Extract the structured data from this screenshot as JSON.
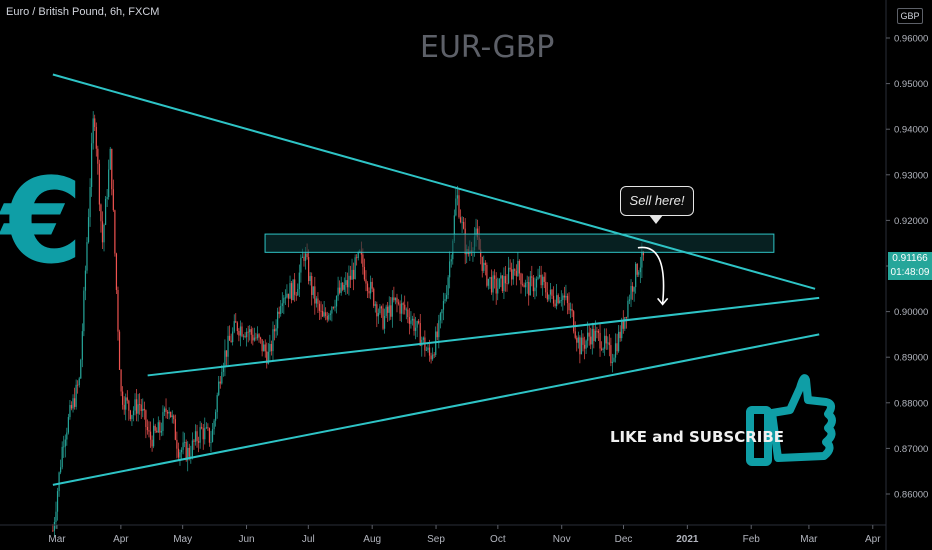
{
  "header": {
    "symbol_title": "Euro / British Pound, 6h, FXCM",
    "watermark": "EUR-GBP",
    "currency_badge": "GBP"
  },
  "price_tag": {
    "price": "0.91166",
    "countdown": "01:48:09"
  },
  "annotations": {
    "callout": "Sell here!",
    "like_text": "LIKE and SUBSCRIBE",
    "euro_symbol": "€",
    "euro_icon": "euro-symbol-icon",
    "thumbs_icon": "thumbs-up-icon"
  },
  "colors": {
    "background": "#000000",
    "trendline": "#2ec4c6",
    "zone_fill": "#0d3a3c",
    "up_candle": "#26a69a",
    "down_candle": "#ef5350",
    "euro_icon": "#0f9ea6",
    "thumb_icon": "#0f9ea6",
    "price_tag": "#26a69a"
  },
  "chart_data": {
    "type": "candlestick",
    "title": "EUR-GBP",
    "xlabel": "",
    "ylabel": "",
    "ylim": [
      0.851,
      0.966
    ],
    "x_ticks": [
      "Mar",
      "Apr",
      "May",
      "Jun",
      "Jul",
      "Aug",
      "Sep",
      "Oct",
      "Nov",
      "Dec",
      "2021",
      "Feb",
      "Mar",
      "Apr"
    ],
    "y_ticks": [
      "0.96000",
      "0.95000",
      "0.94000",
      "0.93000",
      "0.92000",
      "0.91000",
      "0.90000",
      "0.89000",
      "0.88000",
      "0.87000",
      "0.86000"
    ],
    "last_price": 0.91166,
    "price_path": [
      [
        "2020-02-28",
        0.852
      ],
      [
        "2020-03-04",
        0.872
      ],
      [
        "2020-03-12",
        0.885
      ],
      [
        "2020-03-19",
        0.945
      ],
      [
        "2020-03-23",
        0.915
      ],
      [
        "2020-03-27",
        0.935
      ],
      [
        "2020-04-01",
        0.882
      ],
      [
        "2020-04-06",
        0.878
      ],
      [
        "2020-04-10",
        0.88
      ],
      [
        "2020-04-15",
        0.872
      ],
      [
        "2020-04-20",
        0.874
      ],
      [
        "2020-04-24",
        0.88
      ],
      [
        "2020-04-29",
        0.87
      ],
      [
        "2020-05-04",
        0.869
      ],
      [
        "2020-05-10",
        0.874
      ],
      [
        "2020-05-15",
        0.872
      ],
      [
        "2020-05-20",
        0.889
      ],
      [
        "2020-05-27",
        0.897
      ],
      [
        "2020-06-01",
        0.896
      ],
      [
        "2020-06-06",
        0.894
      ],
      [
        "2020-06-12",
        0.89
      ],
      [
        "2020-06-18",
        0.904
      ],
      [
        "2020-06-25",
        0.905
      ],
      [
        "2020-06-29",
        0.913
      ],
      [
        "2020-07-03",
        0.904
      ],
      [
        "2020-07-08",
        0.898
      ],
      [
        "2020-07-14",
        0.903
      ],
      [
        "2020-07-20",
        0.906
      ],
      [
        "2020-07-26",
        0.912
      ],
      [
        "2020-07-31",
        0.905
      ],
      [
        "2020-08-06",
        0.898
      ],
      [
        "2020-08-12",
        0.902
      ],
      [
        "2020-08-18",
        0.9
      ],
      [
        "2020-08-24",
        0.895
      ],
      [
        "2020-08-29",
        0.89
      ],
      [
        "2020-09-02",
        0.895
      ],
      [
        "2020-09-06",
        0.905
      ],
      [
        "2020-09-09",
        0.916
      ],
      [
        "2020-09-11",
        0.926
      ],
      [
        "2020-09-16",
        0.912
      ],
      [
        "2020-09-20",
        0.917
      ],
      [
        "2020-09-25",
        0.908
      ],
      [
        "2020-09-30",
        0.905
      ],
      [
        "2020-10-05",
        0.907
      ],
      [
        "2020-10-10",
        0.91
      ],
      [
        "2020-10-15",
        0.905
      ],
      [
        "2020-10-21",
        0.907
      ],
      [
        "2020-10-27",
        0.903
      ],
      [
        "2020-11-01",
        0.904
      ],
      [
        "2020-11-06",
        0.899
      ],
      [
        "2020-11-10",
        0.892
      ],
      [
        "2020-11-15",
        0.895
      ],
      [
        "2020-11-20",
        0.894
      ],
      [
        "2020-11-25",
        0.89
      ],
      [
        "2020-11-30",
        0.896
      ],
      [
        "2020-12-04",
        0.904
      ],
      [
        "2020-12-08",
        0.91
      ],
      [
        "2020-12-11",
        0.91166
      ]
    ],
    "trendlines": [
      {
        "name": "upper-descending",
        "points": [
          [
            "2020-02-28",
            0.952
          ],
          [
            "2021-03-04",
            0.905
          ]
        ]
      },
      {
        "name": "middle-ascending",
        "points": [
          [
            "2020-04-14",
            0.886
          ],
          [
            "2021-03-06",
            0.903
          ]
        ]
      },
      {
        "name": "lower-ascending",
        "points": [
          [
            "2020-02-28",
            0.862
          ],
          [
            "2021-03-06",
            0.895
          ]
        ]
      }
    ],
    "resistance_zone": {
      "start": "2020-06-10",
      "end": "2021-02-12",
      "low": 0.913,
      "high": 0.917
    },
    "projection_arrow": [
      [
        "2020-12-08",
        0.914
      ],
      [
        "2020-12-16",
        0.912
      ],
      [
        "2020-12-20",
        0.9018
      ]
    ]
  }
}
